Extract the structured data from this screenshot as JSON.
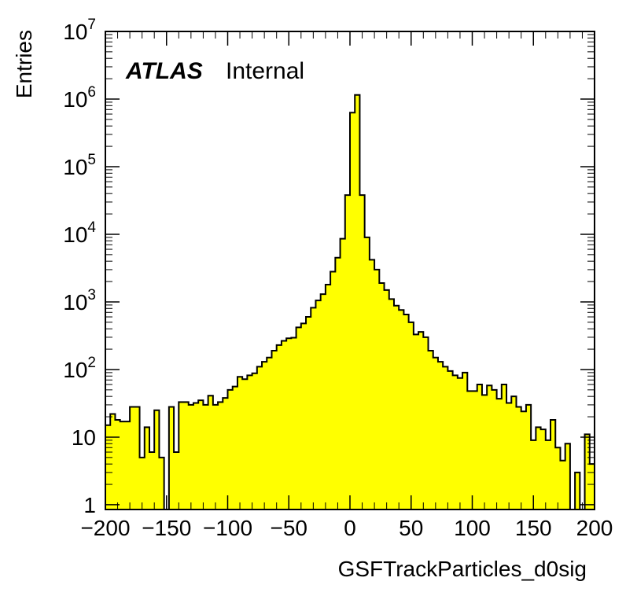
{
  "chart_data": {
    "type": "bar",
    "style": "histogram",
    "fill_color": "#ffff00",
    "line_color": "#000000",
    "log_y": true,
    "grid": false,
    "title": "",
    "label_bold": "ATLAS",
    "label_normal": "Internal",
    "xlabel": "GSFTrackParticles_d0sig",
    "ylabel": "Entries",
    "xlim": [
      -200,
      200
    ],
    "ylim": [
      0.85,
      10000000
    ],
    "x_ticks": [
      -200,
      -150,
      -100,
      -50,
      0,
      50,
      100,
      150,
      200
    ],
    "x_tick_labels": [
      "−200",
      "−150",
      "−100",
      "−50",
      "0",
      "50",
      "100",
      "150",
      "200"
    ],
    "y_ticks": [
      {
        "value": 1,
        "base": "1",
        "exp": ""
      },
      {
        "value": 10,
        "base": "10",
        "exp": ""
      },
      {
        "value": 100,
        "base": "10",
        "exp": "2"
      },
      {
        "value": 1000,
        "base": "10",
        "exp": "3"
      },
      {
        "value": 10000,
        "base": "10",
        "exp": "4"
      },
      {
        "value": 100000,
        "base": "10",
        "exp": "5"
      },
      {
        "value": 1000000,
        "base": "10",
        "exp": "6"
      },
      {
        "value": 10000000,
        "base": "10",
        "exp": "7"
      }
    ],
    "bin_edges": [
      -200,
      4
    ],
    "values": [
      15,
      22,
      18,
      17,
      17,
      28,
      28,
      5,
      14,
      6,
      25,
      5,
      0,
      28,
      6,
      33,
      33,
      30,
      32,
      35,
      30,
      41,
      30,
      33,
      38,
      50,
      56,
      78,
      72,
      82,
      88,
      110,
      130,
      150,
      190,
      230,
      265,
      290,
      295,
      420,
      480,
      600,
      820,
      1050,
      1300,
      1800,
      2800,
      4500,
      8600,
      38000,
      630000,
      1150000,
      38000,
      9000,
      4200,
      3000,
      1900,
      1500,
      1100,
      880,
      760,
      650,
      500,
      330,
      360,
      300,
      190,
      150,
      130,
      110,
      95,
      82,
      75,
      90,
      48,
      48,
      60,
      42,
      58,
      50,
      37,
      60,
      32,
      40,
      28,
      24,
      30,
      9,
      14,
      13,
      9,
      18,
      7,
      4.5,
      8,
      0,
      3,
      0,
      11,
      4
    ]
  }
}
